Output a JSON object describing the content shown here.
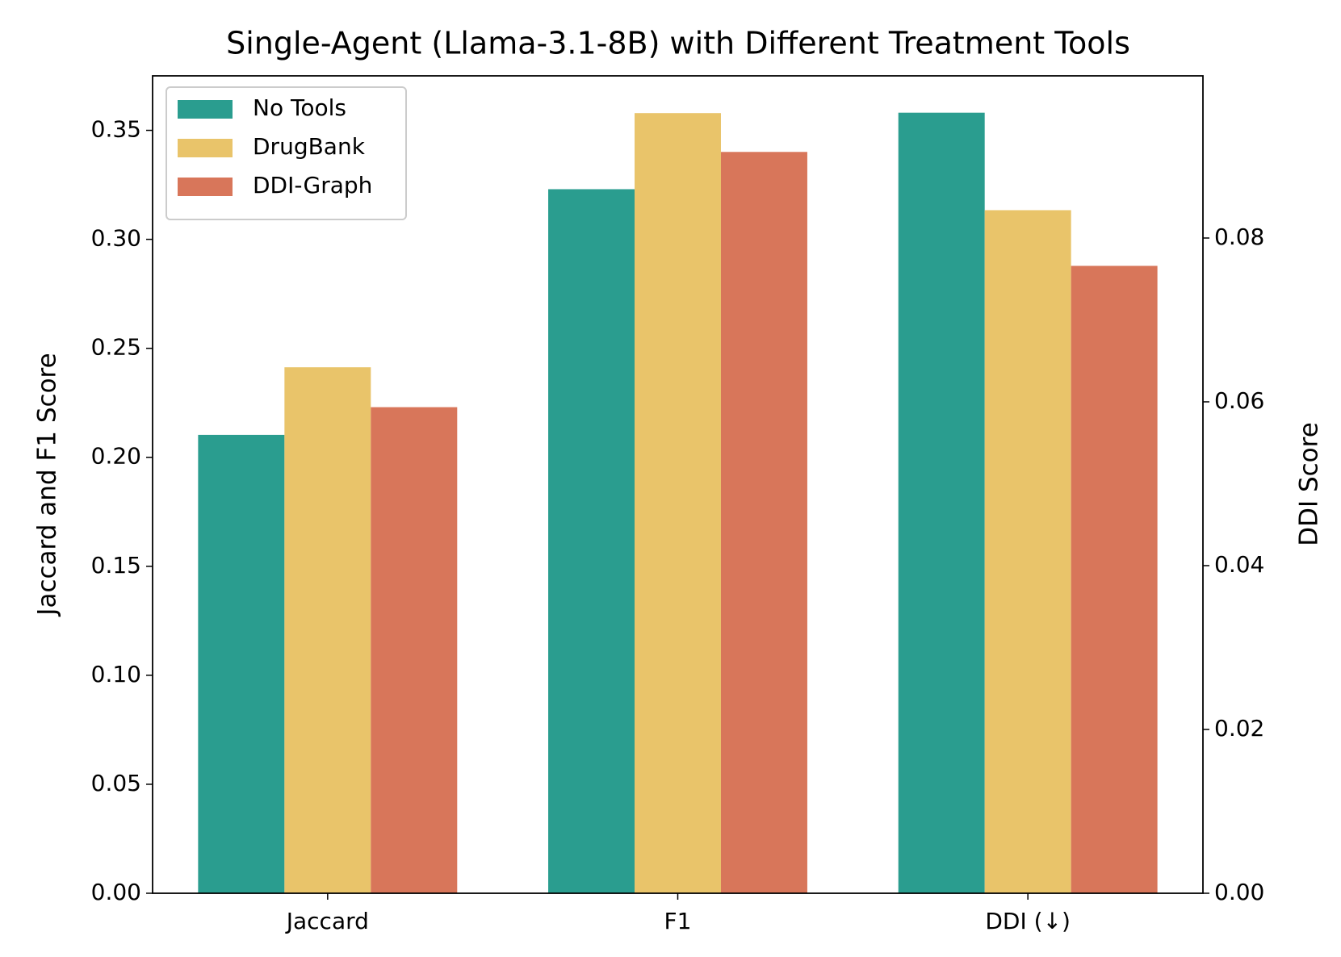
{
  "chart_data": {
    "type": "bar",
    "title": "Single-Agent (Llama-3.1-8B) with Different Treatment Tools",
    "categories": [
      "Jaccard",
      "F1",
      "DDI (↓)"
    ],
    "category_axis": [
      "y",
      "y",
      "y2"
    ],
    "series": [
      {
        "name": "No Tools",
        "color": "#2a9d8f",
        "values": [
          0.2103,
          0.323,
          0.0953
        ]
      },
      {
        "name": "DrugBank",
        "color": "#e9c46a",
        "values": [
          0.2413,
          0.3579,
          0.0834
        ]
      },
      {
        "name": "DDI-Graph",
        "color": "#d8765a",
        "values": [
          0.223,
          0.3401,
          0.0766
        ]
      }
    ],
    "ylabel": "Jaccard and F1 Score",
    "y2label": "DDI Score",
    "ylim": [
      0,
      0.375
    ],
    "yticks": [
      {
        "value": 0,
        "label": "0.00"
      },
      {
        "value": 0.05,
        "label": "0.05"
      },
      {
        "value": 0.1,
        "label": "0.10"
      },
      {
        "value": 0.15,
        "label": "0.15"
      },
      {
        "value": 0.2,
        "label": "0.20"
      },
      {
        "value": 0.25,
        "label": "0.25"
      },
      {
        "value": 0.3,
        "label": "0.30"
      },
      {
        "value": 0.35,
        "label": "0.35"
      }
    ],
    "y2lim": [
      0,
      0.0998
    ],
    "y2ticks": [
      {
        "value": 0,
        "label": "0.00"
      },
      {
        "value": 0.02,
        "label": "0.02"
      },
      {
        "value": 0.04,
        "label": "0.04"
      },
      {
        "value": 0.06,
        "label": "0.06"
      },
      {
        "value": 0.08,
        "label": "0.08"
      }
    ],
    "legend": "upper left",
    "grid": false
  }
}
